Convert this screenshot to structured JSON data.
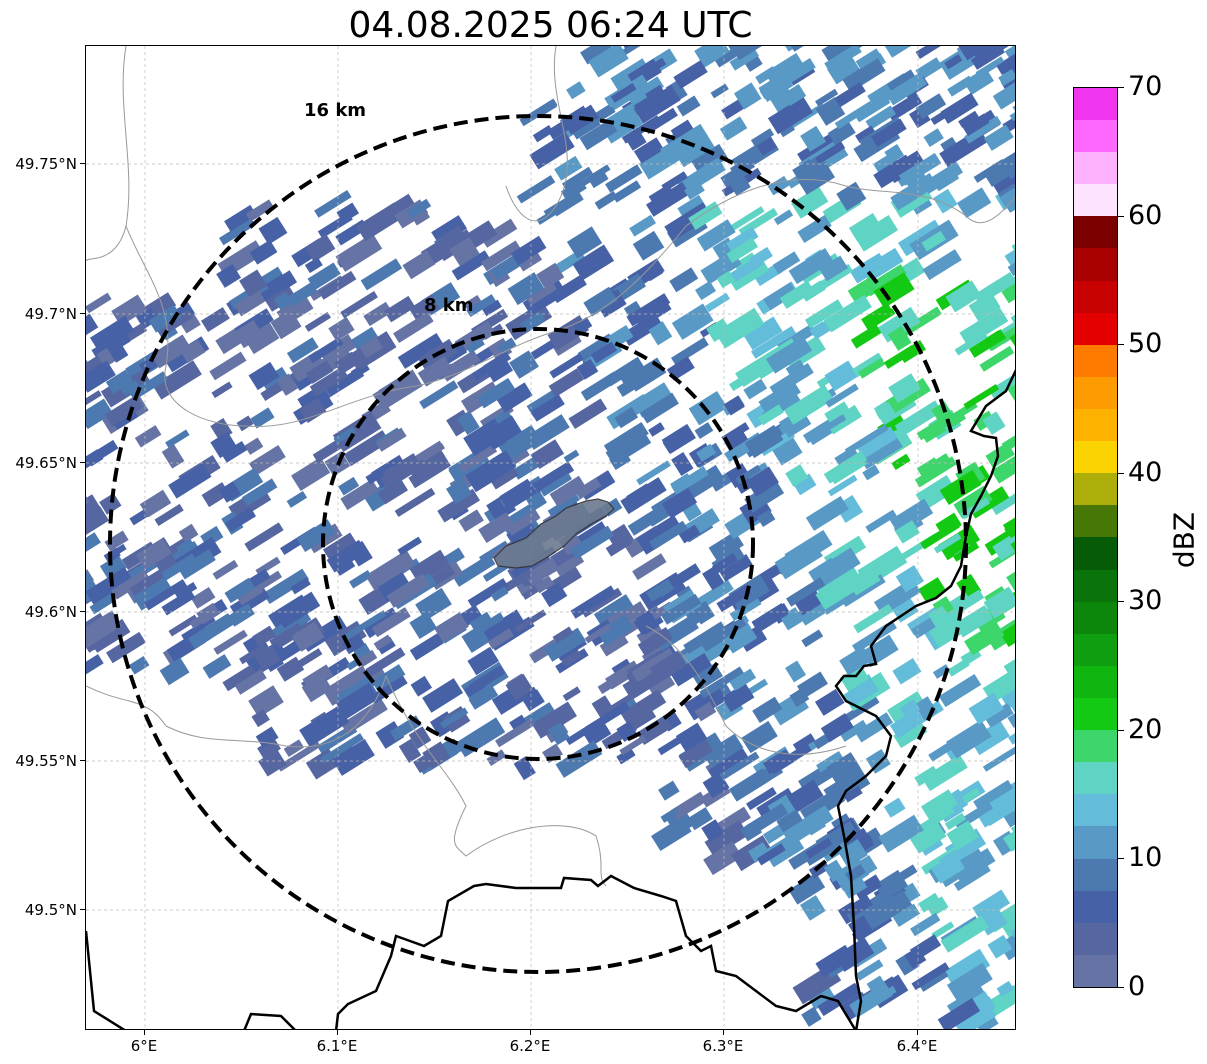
{
  "title": "04.08.2025 06:24 UTC",
  "map": {
    "lat_ticks": [
      "49.75°N",
      "49.7°N",
      "49.65°N",
      "49.6°N",
      "49.55°N",
      "49.5°N"
    ],
    "lon_ticks": [
      "6°E",
      "6.1°E",
      "6.2°E",
      "6.3°E",
      "6.4°E"
    ],
    "range_rings": [
      "8 km",
      "16 km"
    ],
    "ring_color": "#000000",
    "border_color": "#000000",
    "minor_border_color": "#999999",
    "grid": true,
    "outline_fill": "#6b7a8f"
  },
  "colorbar": {
    "label": "dBZ",
    "ticks": [
      "0",
      "10",
      "20",
      "30",
      "40",
      "50",
      "60",
      "70"
    ],
    "range": [
      0,
      70
    ],
    "step": 2.5,
    "colors": [
      "#6574a5",
      "#5566a0",
      "#4761a6",
      "#4d79b1",
      "#5899c6",
      "#63bcd9",
      "#5fd4c4",
      "#3dd66b",
      "#13c913",
      "#10b510",
      "#0f9e0f",
      "#0c870c",
      "#0a740a",
      "#065c06",
      "#477706",
      "#aeae0a",
      "#fad300",
      "#feb200",
      "#fe9b00",
      "#fe7b00",
      "#e50000",
      "#c70000",
      "#a90000",
      "#7d0000",
      "#fee3fe",
      "#feb2fe",
      "#fe68fe",
      "#f034f0"
    ]
  }
}
